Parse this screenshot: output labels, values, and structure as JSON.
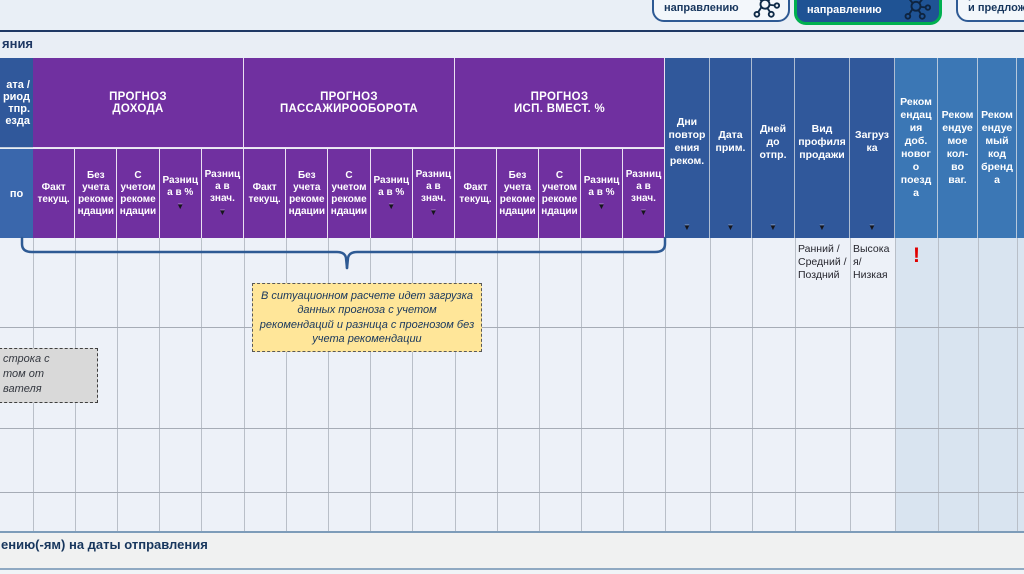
{
  "page_title_fragment": "яния",
  "tabs": [
    {
      "label": "по направлению"
    },
    {
      "label": "и прогноз\nпо направлению"
    },
    {
      "label": "решений\nи предложений"
    }
  ],
  "table": {
    "frozen": {
      "header": "ата /\nриод\nтпр.\nезда",
      "subheader": "по"
    },
    "groups": [
      {
        "title": "ПРОГНОЗ\nДОХОДА"
      },
      {
        "title": "ПРОГНОЗ\nПАССАЖИРООБОРОТА"
      },
      {
        "title": "ПРОГНОЗ\nИСП. ВМЕСТ. %"
      }
    ],
    "subcols": [
      {
        "label": "Факт текущ."
      },
      {
        "label": "Без учета рекомендации"
      },
      {
        "label": "С учетом рекомендации"
      },
      {
        "label": "Разница в %"
      },
      {
        "label": "Разница в знач."
      }
    ],
    "blue_cols": [
      {
        "label": "Дни повторения реком."
      },
      {
        "label": "Дата прим."
      },
      {
        "label": "Дней до отпр."
      },
      {
        "label": "Вид профиля продажи"
      },
      {
        "label": "Загрузка"
      }
    ],
    "reco_cols": [
      {
        "label": "Рекомендация доб. нового поезда"
      },
      {
        "label": "Рекомендуемое кол-во ваг."
      },
      {
        "label": "Рекомендуемый код бренда"
      }
    ],
    "row1": {
      "sales_profile": "Ранний / Средний / Поздний",
      "load": "Высокая/ Низкая",
      "new_train_alert": "!"
    }
  },
  "callouts": {
    "forecast_note": "В ситуационном расчете идет загрузка данных прогноза с учетом рекомендаций и разница с прогнозом без учета рекомендации",
    "row_note": "строка с\nтом от\nвателя"
  },
  "footer_fragment": "ению(-ям) на даты отправления",
  "icons": {
    "filter": "▼"
  },
  "colors": {
    "purple": "#7030a0",
    "blue_header": "#30589b",
    "light_blue_header": "#3b77b5",
    "accent_green": "#00b050",
    "alert_red": "#e00000",
    "note_yellow": "#ffe699",
    "navy": "#1f3864"
  }
}
